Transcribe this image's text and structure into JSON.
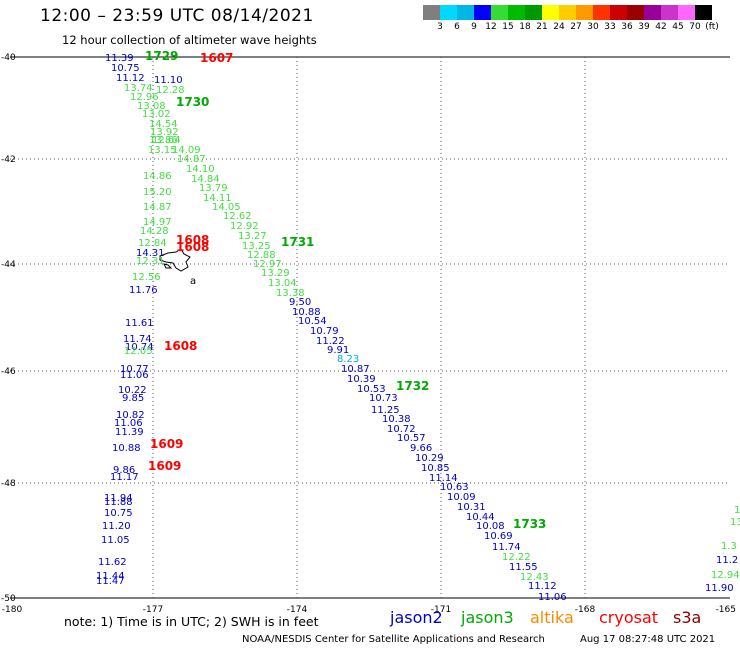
{
  "header": {
    "title": "12:00 – 23:59 UTC 08/14/2021",
    "subtitle": "12 hour collection of altimeter wave heights"
  },
  "color_scale": {
    "labels": [
      "3",
      "6",
      "9",
      "12",
      "15",
      "18",
      "21",
      "24",
      "27",
      "30",
      "33",
      "36",
      "39",
      "42",
      "45",
      "70",
      "(ft)"
    ],
    "colors": [
      "#7f7f7f",
      "#00d8ff",
      "#00b7e5",
      "#0000ff",
      "#33dd33",
      "#00bb00",
      "#009900",
      "#ffff00",
      "#ffcc00",
      "#ff9900",
      "#ff3300",
      "#cc0000",
      "#990000",
      "#990099",
      "#cc33cc",
      "#ff66ff",
      "#000000"
    ]
  },
  "axes": {
    "lat_labels": [
      "-40",
      "-42",
      "-44",
      "-46",
      "-48",
      "-50"
    ],
    "lon_labels": [
      "-180",
      "-177",
      "-174",
      "-171",
      "-168",
      "-165"
    ]
  },
  "satellite_colors": {
    "jason2": "#0000cc",
    "jason3": "#00aa00",
    "altika": "#ff8800",
    "cryosat": "#ff0000",
    "s3a": "#880000",
    "light_green": "#44dd44",
    "cyan": "#00aadd"
  },
  "tracks": {
    "left_track_upper": {
      "values": [
        "11.39",
        "10.75",
        "11.12",
        "13.74",
        "12.96",
        "13.08",
        "13.02",
        "14.54",
        "13.92",
        "13.86",
        "13.15",
        "14.86",
        "15.20",
        "14.87",
        "14.97",
        "14.28",
        "12.84",
        "14.31",
        "12.31",
        "12.56",
        "11.76",
        "11.61",
        "11.74",
        "10.74",
        "12.05"
      ],
      "colors": [
        "b",
        "b",
        "b",
        "g",
        "g",
        "g",
        "g",
        "g",
        "g",
        "g",
        "g",
        "g",
        "g",
        "g",
        "g",
        "g",
        "g",
        "b",
        "g",
        "g",
        "b",
        "b",
        "b",
        "b",
        "g"
      ]
    },
    "left_track_lower": {
      "values": [
        "10.77",
        "11.06",
        "10.22",
        "9.85",
        "10.82",
        "11.06",
        "11.39",
        "10.88",
        "9.86",
        "11.17",
        "11.94",
        "11.88",
        "10.75",
        "11.20",
        "11.05",
        "11.62",
        "11.44",
        "11.47"
      ],
      "colors": [
        "b",
        "b",
        "b",
        "b",
        "b",
        "b",
        "b",
        "b",
        "b",
        "b",
        "b",
        "b",
        "b",
        "b",
        "b",
        "b",
        "b",
        "b"
      ]
    },
    "diag_track_upper": {
      "values": [
        "11.10",
        "12.28",
        "12.64",
        "14.09",
        "14.87",
        "14.10",
        "14.84",
        "13.79",
        "14.11",
        "14.05",
        "12.62",
        "12.92",
        "13.27",
        "13.25",
        "12.88",
        "12.97",
        "13.29",
        "13.04",
        "13.38"
      ],
      "colors": [
        "b",
        "g",
        "g",
        "g",
        "g",
        "g",
        "g",
        "g",
        "g",
        "g",
        "g",
        "g",
        "g",
        "g",
        "g",
        "g",
        "g",
        "g",
        "g"
      ]
    },
    "diag_track_lower": {
      "values": [
        "9.50",
        "10.88",
        "10.54",
        "10.79",
        "11.22",
        "9.91",
        "8.23",
        "10.87",
        "10.39",
        "10.53",
        "10.73",
        "11.25",
        "10.38",
        "10.72",
        "10.57",
        "9.66",
        "10.29",
        "10.85",
        "11.14",
        "10.63",
        "10.09",
        "10.31",
        "10.44",
        "10.08",
        "10.69",
        "11.74",
        "12.22",
        "11.55",
        "12.43",
        "11.12",
        "11.06"
      ],
      "colors": [
        "b",
        "b",
        "b",
        "b",
        "b",
        "b",
        "c",
        "b",
        "b",
        "b",
        "b",
        "b",
        "b",
        "b",
        "b",
        "b",
        "b",
        "b",
        "b",
        "b",
        "b",
        "b",
        "b",
        "b",
        "b",
        "b",
        "g",
        "b",
        "g",
        "b",
        "b"
      ]
    },
    "right_edge": {
      "values": [
        "1",
        "13",
        "1.3",
        "11.2",
        "12.94",
        "11.90"
      ],
      "colors": [
        "g",
        "g",
        "g",
        "b",
        "g",
        "b"
      ]
    }
  },
  "time_labels": [
    {
      "text": "1729",
      "color": "g"
    },
    {
      "text": "1607",
      "color": "r"
    },
    {
      "text": "1730",
      "color": "g"
    },
    {
      "text": "1608",
      "color": "r"
    },
    {
      "text": "1731",
      "color": "g"
    },
    {
      "text": "1608",
      "color": "r"
    },
    {
      "text": "1732",
      "color": "g"
    },
    {
      "text": "1609",
      "color": "r"
    },
    {
      "text": "1609",
      "color": "r"
    },
    {
      "text": "1733",
      "color": "g"
    }
  ],
  "island_label": "а",
  "footer": {
    "note": "note:  1) Time is in UTC;  2) SWH is in feet",
    "sat_jason2": "jason2",
    "sat_jason3": "jason3",
    "sat_altika": "altika",
    "sat_cryosat": "cryosat",
    "sat_s3a": "s3a",
    "credit": "NOAA/NESDIS Center for Satellite Applications and Research",
    "timestamp": "Aug 17 08:27:48 UTC 2021"
  }
}
